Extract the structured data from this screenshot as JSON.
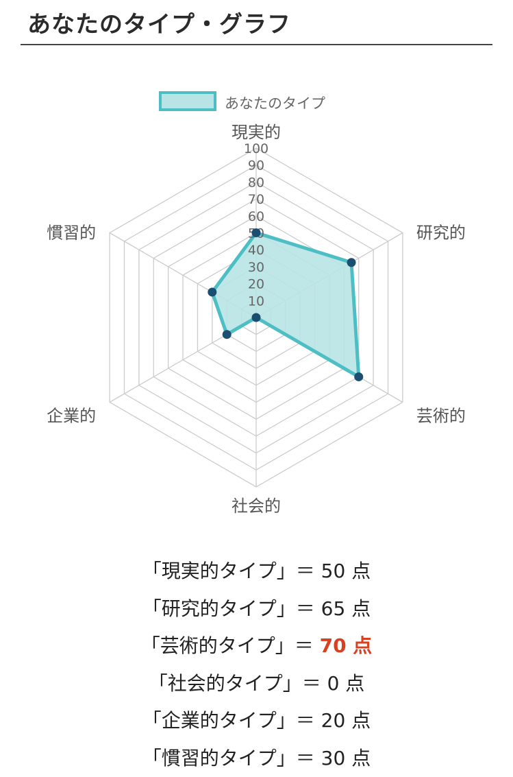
{
  "page_title": "あなたのタイプ・グラフ",
  "chart_data": {
    "type": "radar",
    "legend": {
      "label": "あなたのタイプ",
      "position": "top"
    },
    "axes": [
      "現実的",
      "研究的",
      "芸術的",
      "社会的",
      "企業的",
      "慣習的"
    ],
    "ticks": [
      "10",
      "20",
      "30",
      "40",
      "50",
      "60",
      "70",
      "80",
      "90",
      "100"
    ],
    "range": [
      0,
      100
    ],
    "series": [
      {
        "name": "あなたのタイプ",
        "values": [
          50,
          65,
          70,
          0,
          20,
          30
        ]
      }
    ],
    "colors": {
      "fill": "#b9e4e5",
      "stroke": "#4dbfc4",
      "point": "#1b4f72",
      "grid": "#cccccc"
    }
  },
  "results": [
    {
      "text": "「現実的タイプ」＝ 50 点",
      "highlight": false
    },
    {
      "text": "「研究的タイプ」＝ 65 点",
      "highlight": false
    },
    {
      "prefix": "「芸術的タイプ」＝ ",
      "score": "70 点",
      "highlight": true
    },
    {
      "text": "「社会的タイプ」＝ 0 点",
      "highlight": false
    },
    {
      "text": "「企業的タイプ」＝ 20 点",
      "highlight": false
    },
    {
      "text": "「慣習的タイプ」＝ 30 点",
      "highlight": false
    }
  ],
  "highlight_color": "#d9401f"
}
